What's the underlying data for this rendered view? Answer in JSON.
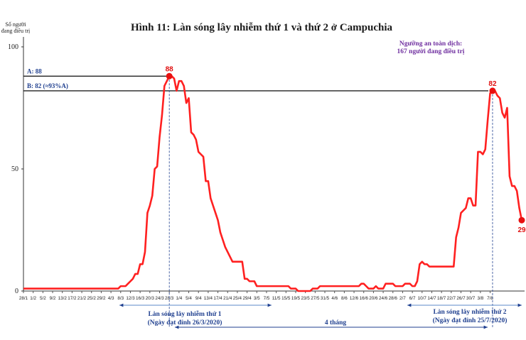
{
  "chart_data": {
    "type": "line",
    "title": "Hình 11: Làn sóng lây nhiễm thứ 1 và thứ 2 ở Campuchia",
    "ylabel": [
      "Số người",
      "đang điều trị"
    ],
    "ylim": [
      0,
      100
    ],
    "yticks": [
      0,
      50,
      100
    ],
    "x_tick_labels": [
      "28/1",
      "1/2",
      "5/2",
      "9/2",
      "13/2",
      "17/2",
      "21/2",
      "25/2",
      "29/2",
      "4/3",
      "8/3",
      "12/3",
      "16/3",
      "20/3",
      "24/3",
      "28/3",
      "1/4",
      "5/4",
      "9/4",
      "13/4",
      "17/4",
      "21/4",
      "25/4",
      "29/4",
      "3/5",
      "7/5",
      "11/5",
      "15/5",
      "19/5",
      "23/5",
      "27/5",
      "31/5",
      "4/6",
      "8/6",
      "12/6",
      "16/6",
      "20/6",
      "24/6",
      "28/6",
      "2/7",
      "6/7",
      "10/7",
      "14/7",
      "18/7",
      "22/7",
      "26/7",
      "30/7",
      "3/8",
      "7/8"
    ],
    "x_start": "28/1",
    "x_end": "7/8",
    "series": [
      {
        "color": "#ff2020",
        "values": [
          1,
          1,
          1,
          1,
          1,
          1,
          1,
          1,
          1,
          1,
          1,
          1,
          1,
          1,
          1,
          1,
          1,
          1,
          1,
          1,
          1,
          1,
          1,
          1,
          1,
          1,
          1,
          1,
          1,
          1,
          1,
          1,
          1,
          1,
          1,
          1,
          1,
          1,
          1,
          1,
          2,
          2,
          2,
          3,
          4,
          5,
          7,
          7,
          11,
          11,
          16,
          32,
          35,
          39,
          50,
          51,
          63,
          72,
          84,
          86,
          88,
          88,
          87,
          82,
          86,
          86,
          84,
          77,
          79,
          65,
          64,
          62,
          57,
          56,
          55,
          45,
          45,
          38,
          35,
          32,
          29,
          24,
          21,
          18,
          16,
          14,
          12,
          12,
          12,
          12,
          12,
          5,
          5,
          4,
          4,
          4,
          2,
          2,
          2,
          2,
          2,
          2,
          2,
          2,
          2,
          2,
          2,
          2,
          2,
          2,
          1,
          1,
          1,
          0,
          0,
          0,
          0,
          0,
          0,
          1,
          1,
          1,
          2,
          2,
          2,
          2,
          2,
          2,
          2,
          2,
          2,
          2,
          2,
          2,
          2,
          2,
          2,
          2,
          2,
          3,
          3,
          2,
          1,
          1,
          1,
          2,
          1,
          1,
          1,
          3,
          3,
          3,
          3,
          2,
          2,
          2,
          2,
          3,
          3,
          3,
          2,
          2,
          4,
          11,
          12,
          11,
          11,
          10,
          10,
          10,
          10,
          10,
          10,
          10,
          10,
          10,
          10,
          10,
          22,
          26,
          32,
          33,
          34,
          38,
          38,
          35,
          35,
          57,
          57,
          56,
          58,
          70,
          81,
          82,
          82,
          80,
          79,
          73,
          71,
          75,
          47,
          43,
          43,
          41,
          34,
          29
        ]
      }
    ],
    "reference_lines": [
      {
        "label": "A: 88",
        "value": 88
      },
      {
        "label": "B: 82 (≈93%A)",
        "value": 82
      }
    ],
    "peaks": [
      {
        "label": "88",
        "date": "26/3/2020",
        "value": 88
      },
      {
        "label": "82",
        "date": "25/7/2020",
        "value": 82
      }
    ],
    "end_point": {
      "label": "29",
      "date": "7/8",
      "value": 29
    },
    "threshold_note": [
      "Ngưỡng an toàn dịch:",
      "167 người đang điều trị"
    ],
    "wave1_note": [
      "Làn sóng lây nhiễm thứ 1",
      "(Ngày đạt đỉnh 26/3/2020)"
    ],
    "wave2_note": [
      "Làn sóng lây nhiễm thứ 2",
      "(Ngày đạt đỉnh 25/7/2020)"
    ],
    "gap_note": "4 tháng",
    "grid": false,
    "legend": "none"
  }
}
